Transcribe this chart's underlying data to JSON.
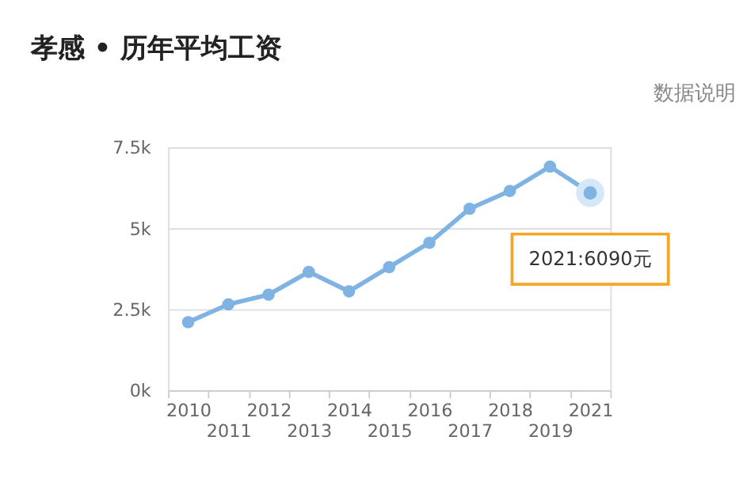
{
  "chart_data": {
    "type": "line",
    "title": "孝感 • 历年平均工资",
    "categories": [
      "2010",
      "2011",
      "2012",
      "2013",
      "2014",
      "2015",
      "2016",
      "2017",
      "2018",
      "2019",
      "2021"
    ],
    "series": [
      {
        "color": "#7fb3e3",
        "values": [
          2100,
          2650,
          2950,
          3650,
          3050,
          3800,
          4550,
          5600,
          6150,
          6900,
          6090
        ]
      }
    ],
    "ylim": [
      0,
      7500
    ],
    "yticks": [
      {
        "value": 0,
        "label": "0k"
      },
      {
        "value": 2500,
        "label": "2.5k"
      },
      {
        "value": 5000,
        "label": "5k"
      },
      {
        "value": 7500,
        "label": "7.5k"
      }
    ],
    "grid": "y",
    "marker": "circle",
    "line_style": "solid",
    "annotations": [
      "数据说明",
      {
        "text": "2021:6090元",
        "x": "2021",
        "y": 6090
      }
    ]
  }
}
